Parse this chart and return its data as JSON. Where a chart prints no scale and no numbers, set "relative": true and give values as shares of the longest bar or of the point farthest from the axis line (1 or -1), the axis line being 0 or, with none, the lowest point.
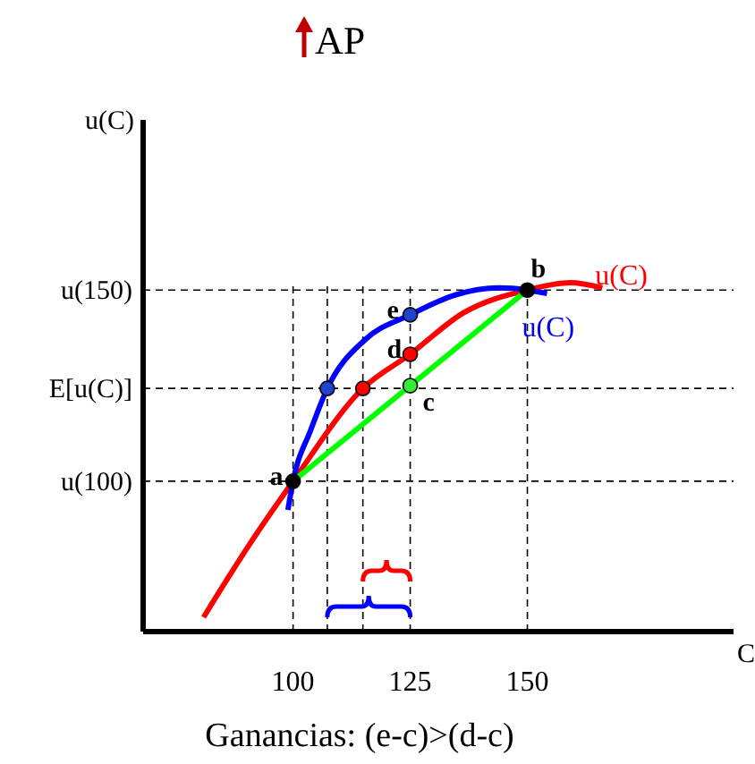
{
  "chart_data": {
    "type": "line",
    "title": "AP",
    "xlabel": "C",
    "relative": true,
    "x": [
      80.9,
      90.5,
      100,
      114.9,
      125,
      136.3,
      150,
      159.2,
      166
    ],
    "xlim": [
      68,
      194
    ],
    "xticks": [
      100,
      125,
      150
    ],
    "line_style": "solid",
    "series": [
      {
        "name": "u(C)",
        "color": "#ff0000",
        "values": [
          0.041,
          0.246,
          0.431,
          0.697,
          0.795,
          0.913,
          0.979,
          1.0,
          0.985
        ]
      },
      {
        "name": "u(C)",
        "color": "#0000ff",
        "x": [
          98.9,
          100,
          103.8,
          107.3,
          115.3,
          125,
          134.4,
          143.9,
          150,
          154.2
        ],
        "values": [
          0.349,
          0.431,
          0.579,
          0.697,
          0.836,
          0.908,
          0.964,
          0.985,
          0.979,
          0.969
        ]
      },
      {
        "color": "#00ff00",
        "x": [
          100,
          150
        ],
        "values": [
          0.431,
          0.979
        ]
      },
      {
        "type": "scatter",
        "marker": "circle",
        "x": [
          100,
          150,
          125,
          125,
          125,
          107.3,
          114.9
        ],
        "values": [
          0.431,
          0.979,
          0.705,
          0.795,
          0.908,
          0.697,
          0.697
        ],
        "colors": [
          "#000000",
          "#000000",
          "#33ee33",
          "#ff0000",
          "#2244cc",
          "#2244cc",
          "#ff0000"
        ]
      }
    ],
    "ref_lines": [
      {
        "axis": "y",
        "value": 0.979,
        "label": "u(150)",
        "line_style": "dashed",
        "color": "#000000"
      },
      {
        "axis": "y",
        "value": 0.697,
        "label": "E[u(C)]",
        "line_style": "dashed",
        "color": "#000000"
      },
      {
        "axis": "y",
        "value": 0.431,
        "label": "u(100)",
        "line_style": "dashed",
        "color": "#000000"
      },
      {
        "axis": "x",
        "value": 100,
        "line_style": "dashed",
        "color": "#000000"
      },
      {
        "axis": "x",
        "value": 107.3,
        "line_style": "dashed",
        "color": "#000000"
      },
      {
        "axis": "x",
        "value": 114.9,
        "line_style": "dashed",
        "color": "#000000"
      },
      {
        "axis": "x",
        "value": 125,
        "line_style": "dashed",
        "color": "#000000"
      },
      {
        "axis": "x",
        "value": 150,
        "line_style": "dashed",
        "color": "#000000"
      }
    ],
    "annotations": [
      "u(C)",
      {
        "text": "a",
        "x": 100,
        "y": 0.431
      },
      {
        "text": "b",
        "x": 150,
        "y": 0.979
      },
      {
        "text": "c",
        "x": 125,
        "y": 0.705
      },
      {
        "text": "d",
        "x": 125,
        "y": 0.795
      },
      {
        "text": "e",
        "x": 125,
        "y": 0.908
      },
      "Ganancias: (e-c)>(d-c)"
    ]
  }
}
